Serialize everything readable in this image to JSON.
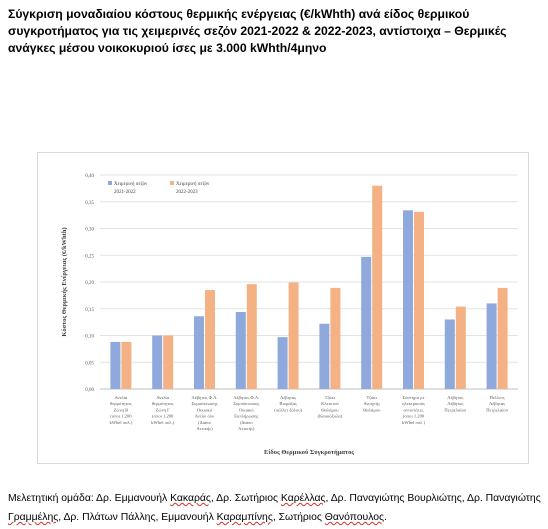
{
  "title": "Σύγκριση μοναδιαίου κόστους θερμικής ενέργειας (€/kWhth) ανά είδος θερμικού συγκροτήματος για τις χειμερινές σεζόν 2021-2022 & 2022-2023, αντίστοιχα – Θερμικές ανάγκες μέσου νοικοκυριού ίσες με 3.000 kWhth/4μηνο",
  "footer": {
    "prefix": "Μελετητική ομάδα: ",
    "names": [
      {
        "text": "Δρ. Εμμανουήλ ",
        "sq": "Κακαράς",
        "sep": ", "
      },
      {
        "text": "Δρ. Σωτήριος ",
        "sq": "Καρέλλας",
        "sep": ", "
      },
      {
        "text": "Δρ. Παναγιώτης Βουρλιώτης",
        "sq": "",
        "sep": ", "
      },
      {
        "text": "Δρ. Παναγιώτης ",
        "sq": "Γραμμέλης",
        "sep": ", "
      },
      {
        "text": "Δρ. Πλάτων Πάλλης, Εμμανουήλ ",
        "sq": "Καραμπίνης",
        "sep": ", "
      },
      {
        "text": "Σωτήριος ",
        "sq": "Θανόπουλος",
        "sep": "."
      }
    ]
  },
  "chart_data": {
    "type": "bar",
    "ylabel": "Κόστος Θερμικής Ενέργειας (€/kWhth)",
    "xlabel": "Είδος Θερμικού Συγκροτήματος",
    "ylim": [
      0,
      0.4
    ],
    "yticks": [
      "0,00",
      "0,05",
      "0,10",
      "0,15",
      "0,20",
      "0,25",
      "0,30",
      "0,35",
      "0,40"
    ],
    "grid": true,
    "legend_position": "top-left",
    "categories": [
      [
        "Αντλία",
        "θερμότητας",
        "Ζώνη Β",
        "(σποι 1.200",
        "kWhel πολ.)"
      ],
      [
        "Αντλία",
        "θερμότητας",
        "Ζώνη Γ",
        "(σποι 1.200",
        "kWhel πολ.)"
      ],
      [
        "Λέβητας Φ.Α.",
        "Συμπύκνωσης",
        "Οικιακό",
        "Αντίοι όλο",
        "(Διάπο",
        "Αττικής)"
      ],
      [
        "Λέβητας Φ.Α.",
        "Συμπύκνωσης",
        "Οικιακό",
        "Εκπλήρωσης",
        "(Διάπο",
        "Αττικής)"
      ],
      [
        "Λέβητας",
        "Βιομάζας",
        "(πέλλετ ξύλου)"
      ],
      [
        "Τζάκι",
        "Κλειστού",
        "Θαλάμου",
        "(Καυσόξυλα)"
      ],
      [
        "Τζάκι",
        "Ανοιχτής",
        "Θαλάμου"
      ],
      [
        "Σύστημα με",
        "ηλεκτρικούς",
        "αντιστάτες",
        "(σποι 1.200",
        "kWhel πολ.)"
      ],
      [
        "Λέβητας",
        "Λέβητας",
        "Πετρελαίου"
      ],
      [
        "Πελλετς",
        "Λέβητας",
        "Πετρελαίου"
      ]
    ],
    "series": [
      {
        "name": "Χειμερινή σεζόν 2021-2022",
        "color": "#8fa9dc",
        "values": [
          0.088,
          0.1,
          0.136,
          0.144,
          0.097,
          0.122,
          0.247,
          0.334,
          0.13,
          0.16
        ]
      },
      {
        "name": "Χειμερινή σεζόν 2022-2023",
        "color": "#f4b183",
        "values": [
          0.088,
          0.1,
          0.185,
          0.196,
          0.199,
          0.189,
          0.38,
          0.331,
          0.154,
          0.189
        ]
      }
    ]
  }
}
